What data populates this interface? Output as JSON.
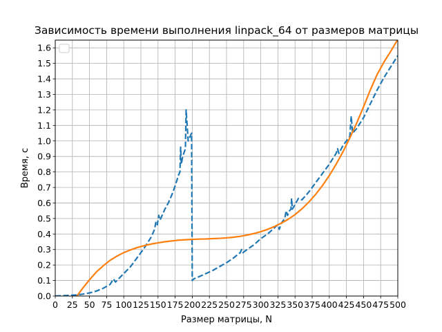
{
  "chart_data": {
    "type": "line",
    "title": "Зависимость времени выполнения linpack_64 от размеров матрицы",
    "xlabel": "Размер матрицы, N",
    "ylabel": "Время, с",
    "xlim": [
      0,
      500
    ],
    "ylim": [
      0,
      1.65
    ],
    "xticks": [
      0,
      25,
      50,
      75,
      100,
      125,
      150,
      175,
      200,
      225,
      250,
      275,
      300,
      325,
      350,
      375,
      400,
      425,
      450,
      475,
      500
    ],
    "yticks": [
      0.0,
      0.1,
      0.2,
      0.3,
      0.4,
      0.5,
      0.6,
      0.7,
      0.8,
      0.9,
      1.0,
      1.1,
      1.2,
      1.3,
      1.4,
      1.5,
      1.6
    ],
    "grid": true,
    "legend": "upper-left",
    "series": [
      {
        "color": "#1f77b4",
        "style": "dashed",
        "points": [
          [
            0,
            0.0
          ],
          [
            10,
            0.002
          ],
          [
            20,
            0.004
          ],
          [
            30,
            0.007
          ],
          [
            40,
            0.012
          ],
          [
            50,
            0.02
          ],
          [
            60,
            0.032
          ],
          [
            70,
            0.05
          ],
          [
            80,
            0.075
          ],
          [
            85,
            0.11
          ],
          [
            88,
            0.09
          ],
          [
            90,
            0.1
          ],
          [
            100,
            0.145
          ],
          [
            110,
            0.19
          ],
          [
            120,
            0.25
          ],
          [
            130,
            0.31
          ],
          [
            140,
            0.38
          ],
          [
            145,
            0.43
          ],
          [
            147,
            0.48
          ],
          [
            149,
            0.46
          ],
          [
            151,
            0.52
          ],
          [
            153,
            0.49
          ],
          [
            160,
            0.56
          ],
          [
            165,
            0.6
          ],
          [
            170,
            0.65
          ],
          [
            175,
            0.71
          ],
          [
            180,
            0.78
          ],
          [
            182,
            0.8
          ],
          [
            183,
            0.96
          ],
          [
            184,
            0.85
          ],
          [
            186,
            0.9
          ],
          [
            190,
            0.95
          ],
          [
            191,
            1.2
          ],
          [
            193,
            1.07
          ],
          [
            194,
            1.0
          ],
          [
            196,
            1.02
          ],
          [
            199,
            1.05
          ],
          [
            200,
            0.1
          ],
          [
            202,
            0.11
          ],
          [
            210,
            0.125
          ],
          [
            220,
            0.145
          ],
          [
            230,
            0.165
          ],
          [
            240,
            0.19
          ],
          [
            250,
            0.215
          ],
          [
            260,
            0.245
          ],
          [
            270,
            0.28
          ],
          [
            272,
            0.3
          ],
          [
            274,
            0.28
          ],
          [
            280,
            0.3
          ],
          [
            290,
            0.33
          ],
          [
            300,
            0.37
          ],
          [
            310,
            0.4
          ],
          [
            320,
            0.44
          ],
          [
            325,
            0.46
          ],
          [
            327,
            0.43
          ],
          [
            330,
            0.47
          ],
          [
            335,
            0.5
          ],
          [
            337,
            0.55
          ],
          [
            339,
            0.52
          ],
          [
            342,
            0.55
          ],
          [
            344,
            0.56
          ],
          [
            345,
            0.63
          ],
          [
            346,
            0.56
          ],
          [
            350,
            0.59
          ],
          [
            355,
            0.63
          ],
          [
            360,
            0.62
          ],
          [
            370,
            0.67
          ],
          [
            380,
            0.73
          ],
          [
            390,
            0.79
          ],
          [
            400,
            0.85
          ],
          [
            410,
            0.92
          ],
          [
            412,
            0.95
          ],
          [
            414,
            0.92
          ],
          [
            420,
            0.97
          ],
          [
            430,
            1.03
          ],
          [
            432,
            1.16
          ],
          [
            434,
            1.05
          ],
          [
            440,
            1.08
          ],
          [
            450,
            1.15
          ],
          [
            460,
            1.24
          ],
          [
            470,
            1.33
          ],
          [
            480,
            1.41
          ],
          [
            490,
            1.48
          ],
          [
            500,
            1.55
          ]
        ]
      },
      {
        "color": "#ff7f0e",
        "style": "solid",
        "points": [
          [
            30,
            -0.01
          ],
          [
            35,
            0.02
          ],
          [
            40,
            0.05
          ],
          [
            50,
            0.105
          ],
          [
            60,
            0.155
          ],
          [
            70,
            0.195
          ],
          [
            80,
            0.23
          ],
          [
            90,
            0.257
          ],
          [
            100,
            0.28
          ],
          [
            110,
            0.298
          ],
          [
            120,
            0.313
          ],
          [
            130,
            0.325
          ],
          [
            140,
            0.335
          ],
          [
            150,
            0.343
          ],
          [
            160,
            0.35
          ],
          [
            170,
            0.355
          ],
          [
            180,
            0.36
          ],
          [
            190,
            0.363
          ],
          [
            200,
            0.365
          ],
          [
            210,
            0.367
          ],
          [
            220,
            0.368
          ],
          [
            230,
            0.37
          ],
          [
            240,
            0.372
          ],
          [
            250,
            0.375
          ],
          [
            260,
            0.379
          ],
          [
            270,
            0.385
          ],
          [
            280,
            0.393
          ],
          [
            290,
            0.403
          ],
          [
            300,
            0.415
          ],
          [
            310,
            0.43
          ],
          [
            320,
            0.448
          ],
          [
            330,
            0.47
          ],
          [
            340,
            0.495
          ],
          [
            350,
            0.525
          ],
          [
            360,
            0.562
          ],
          [
            370,
            0.605
          ],
          [
            380,
            0.655
          ],
          [
            390,
            0.712
          ],
          [
            400,
            0.777
          ],
          [
            410,
            0.85
          ],
          [
            420,
            0.93
          ],
          [
            430,
            1.02
          ],
          [
            440,
            1.115
          ],
          [
            450,
            1.22
          ],
          [
            460,
            1.33
          ],
          [
            470,
            1.43
          ],
          [
            480,
            1.51
          ],
          [
            490,
            1.58
          ],
          [
            500,
            1.655
          ]
        ]
      }
    ]
  }
}
